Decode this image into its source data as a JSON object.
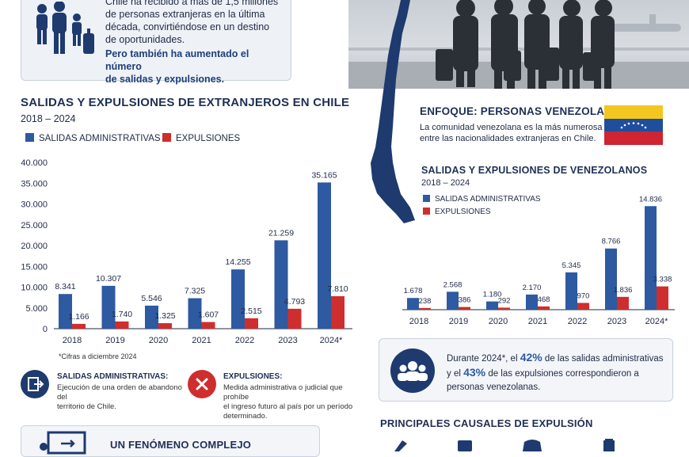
{
  "intro": {
    "text_lines": [
      "Chile ha recibido a más de 1,5 millones",
      "de personas extranjeras en la última",
      "década, convirtiéndose en un destino",
      "de oportunidades."
    ],
    "highlight_lines": [
      "Pero también ha aumentado el número",
      "de salidas y expulsiones."
    ]
  },
  "left_chart": {
    "title": "SALIDAS Y EXPULSIONES DE EXTRANJEROS EN CHILE",
    "subtitle": "2018 – 2024",
    "footnote": "*Cifras a diciembre 2024"
  },
  "right_header": {
    "title": "ENFOQUE: PERSONAS VENEZOLANAS",
    "text_lines": [
      "La comunidad venezolana es la más numerosa",
      "entre las nacionalidades extranjeras en Chile."
    ]
  },
  "right_chart": {
    "title": "SALIDAS Y EXPULSIONES DE VENEZOLANOS",
    "subtitle": "2018 – 2024"
  },
  "definitions": {
    "salidas_title": "SALIDAS ADMINISTRATIVAS:",
    "salidas_lines": [
      "Ejecución de una orden de abandono del",
      "territorio de Chile."
    ],
    "expulsiones_title": "EXPULSIONES:",
    "expulsiones_lines": [
      "Medida administrativa o judicial que prohíbe",
      "el ingreso futuro al país por un período",
      "determinado."
    ]
  },
  "stat_box": {
    "l1a": "Durante 2024*, el ",
    "p1": "42%",
    "l1b": " de las salidas administrativas",
    "l2a": "y el ",
    "p2": "43%",
    "l2b": " de las expulsiones correspondieron a",
    "l3": "personas venezolanas."
  },
  "bottom": {
    "phenomenon": "UN FENÓMENO COMPLEJO",
    "causes": "PRINCIPALES CAUSALES DE EXPULSIÓN"
  },
  "colors": {
    "blue": "#2d5aa0",
    "red": "#cf2e2e",
    "navy": "#1e3a6e"
  },
  "chart_data": [
    {
      "type": "bar",
      "title": "SALIDAS Y EXPULSIONES DE EXTRANJEROS EN CHILE",
      "subtitle": "2018 – 2024",
      "categories": [
        "2018",
        "2019",
        "2020",
        "2021",
        "2022",
        "2023",
        "2024*"
      ],
      "series": [
        {
          "name": "SALIDAS ADMINISTRATIVAS",
          "values": [
            8341,
            10307,
            5546,
            7325,
            14255,
            21259,
            35165
          ],
          "labels": [
            "8.341",
            "10.307",
            "5.546",
            "7.325",
            "14.255",
            "21.259",
            "35.165"
          ]
        },
        {
          "name": "EXPULSIONES",
          "values": [
            1166,
            1740,
            1325,
            1607,
            2515,
            4793,
            7810
          ],
          "labels": [
            "1.166",
            "1.740",
            "1.325",
            "1.607",
            "2.515",
            "4.793",
            "7.810"
          ]
        }
      ],
      "ylim": [
        0,
        40000
      ],
      "yticks": [
        0,
        5000,
        10000,
        15000,
        20000,
        25000,
        30000,
        35000,
        40000
      ],
      "ytick_labels": [
        "0",
        "5.000",
        "10.000",
        "15.000",
        "20.000",
        "25.000",
        "30.000",
        "35.000",
        "40.000"
      ],
      "grid": false,
      "legend": "top-left"
    },
    {
      "type": "bar",
      "title": "SALIDAS Y EXPULSIONES DE VENEZOLANOS",
      "subtitle": "2018 – 2024",
      "categories": [
        "2018",
        "2019",
        "2020",
        "2021",
        "2022",
        "2023",
        "2024*"
      ],
      "series": [
        {
          "name": "SALIDAS ADMINISTRATIVAS",
          "values": [
            1678,
            2568,
            1180,
            2170,
            5345,
            8766,
            14836
          ],
          "labels": [
            "1.678",
            "2.568",
            "1.180",
            "2.170",
            "5.345",
            "8.766",
            "14.836"
          ]
        },
        {
          "name": "EXPULSIONES",
          "values": [
            238,
            386,
            292,
            468,
            970,
            1836,
            3338
          ],
          "labels": [
            "238",
            "386",
            "292",
            "468",
            "970",
            "1.836",
            "3.338"
          ]
        }
      ],
      "ylim": [
        0,
        16000
      ],
      "grid": false,
      "legend": "top-left"
    }
  ]
}
